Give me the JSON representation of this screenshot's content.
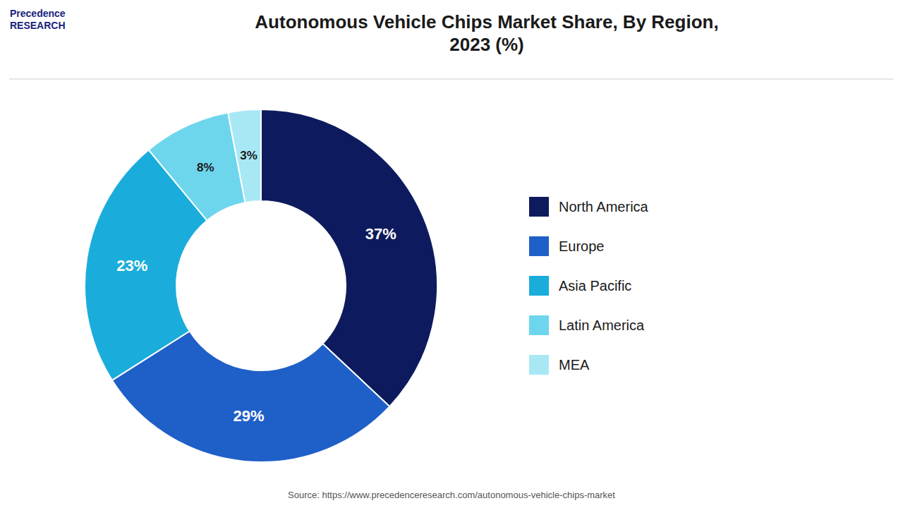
{
  "chart_data": {
    "type": "pie",
    "title": "Autonomous Vehicle Chips Market Share, By Region,\n2023 (%)",
    "categories": [
      "North America",
      "Europe",
      "Asia Pacific",
      "Latin America",
      "MEA"
    ],
    "values": [
      37,
      29,
      23,
      8,
      3
    ],
    "value_labels": [
      "37%",
      "29%",
      "23%",
      "8%",
      "3%"
    ],
    "data_labels": true,
    "colors": [
      "#0d1b5e",
      "#1f5fc8",
      "#1aaddb",
      "#6dd6ec",
      "#a8e8f5"
    ],
    "legend": "right",
    "annotations": [
      "Precedence\nRESEARCH",
      "Source: https://www.precedenceresearch.com/autonomous-vehicle-chips-market"
    ]
  }
}
